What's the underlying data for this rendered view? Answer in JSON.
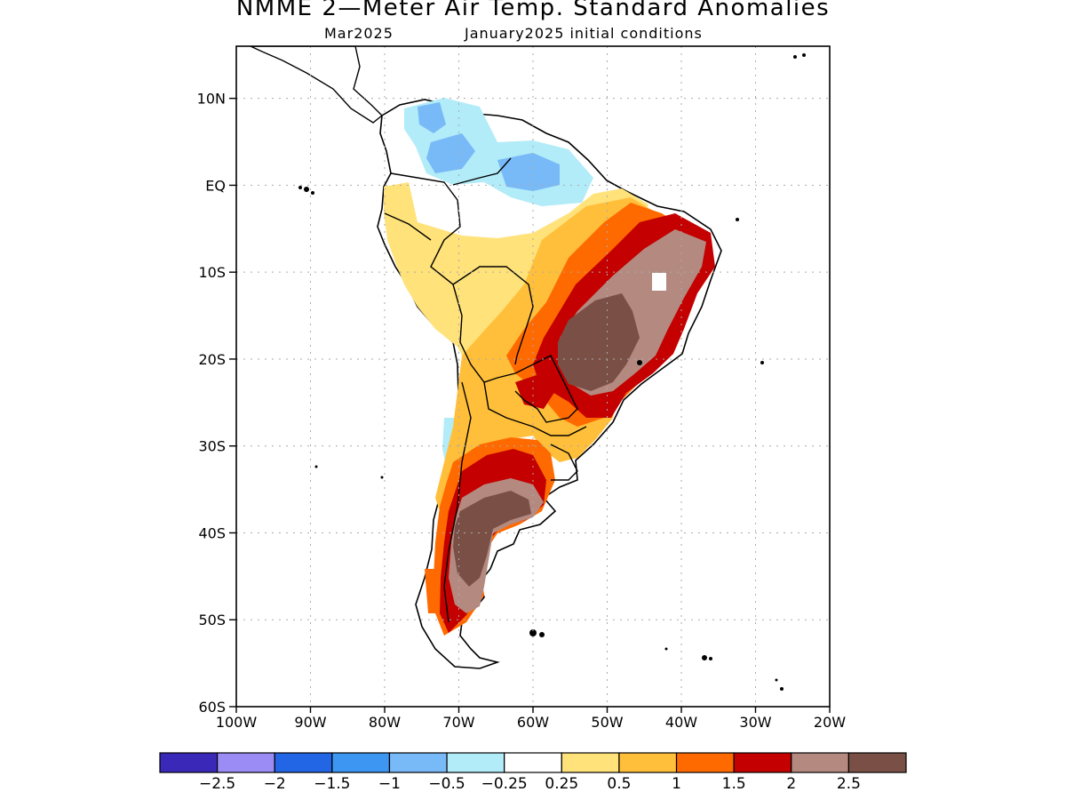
{
  "title": "NMME 2—Meter Air Temp. Standard Anomalies",
  "subtitle_month": "Mar2025",
  "subtitle_ic": "January2025 initial conditions",
  "lat_labels": [
    "10N",
    "EQ",
    "10S",
    "20S",
    "30S",
    "40S",
    "50S",
    "60S"
  ],
  "lon_labels": [
    "100W",
    "90W",
    "80W",
    "70W",
    "60W",
    "50W",
    "40W",
    "30W",
    "20W"
  ],
  "map_extent": {
    "lon": [
      -100,
      -20
    ],
    "lat": [
      -60,
      16
    ]
  },
  "colorbar": {
    "colors": [
      "#3a28b8",
      "#9b8cf5",
      "#2266e6",
      "#3c96f2",
      "#78b9f8",
      "#b2ecf8",
      "#ffffff",
      "#ffe27a",
      "#ffbf3a",
      "#ff6a00",
      "#c40000",
      "#b48a80",
      "#7a5046"
    ],
    "labels": [
      "−2.5",
      "−2",
      "−1.5",
      "−1",
      "−0.5",
      "−0.25",
      "0.25",
      "0.5",
      "1",
      "1.5",
      "2",
      "2.5"
    ]
  }
}
